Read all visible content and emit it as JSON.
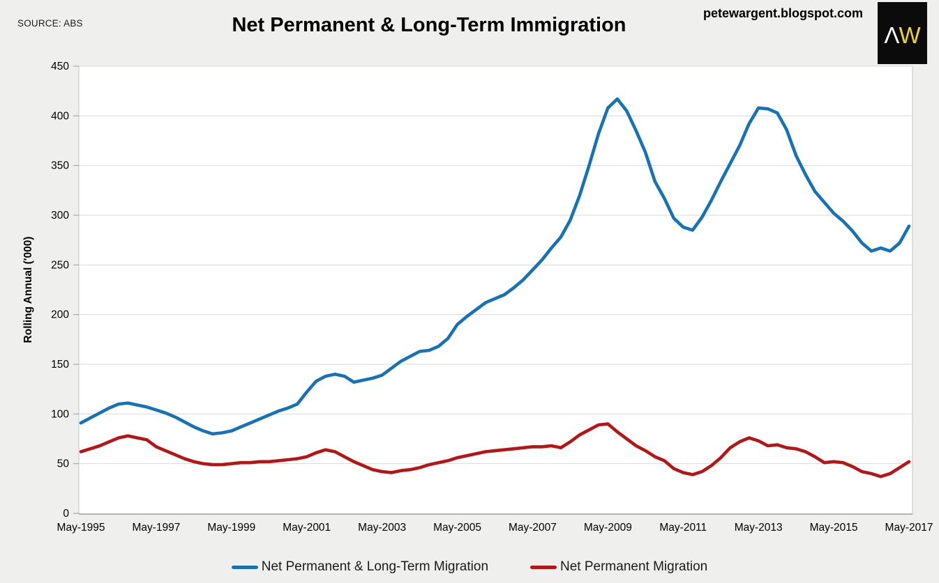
{
  "header": {
    "source": "SOURCE: ABS",
    "title": "Net Permanent & Long-Term Immigration",
    "site_url": "petewargent.blogspot.com",
    "logo": {
      "letter_a": "Λ",
      "letter_w": "W",
      "bg": "#0B0B0B",
      "a_color": "#FFFFFF",
      "w_color": "#EFD428"
    }
  },
  "chart_data": {
    "type": "line",
    "title": "Net Permanent & Long-Term Immigration",
    "xlabel": "",
    "ylabel": "Rolling Annual ('000)",
    "ylim": [
      0,
      450
    ],
    "ytick_step": 50,
    "grid": "horizontal",
    "legend_position": "bottom",
    "x_start_label": "May-1995",
    "x_end_label": "May-2017",
    "x_step_months": 3,
    "x_total_months": 264,
    "x_tick_month_positions": [
      0,
      24,
      48,
      72,
      96,
      120,
      144,
      168,
      192,
      216,
      240,
      264
    ],
    "x_tick_labels": [
      "May-1995",
      "May-1997",
      "May-1999",
      "May-2001",
      "May-2003",
      "May-2005",
      "May-2007",
      "May-2009",
      "May-2011",
      "May-2013",
      "May-2015",
      "May-2017"
    ],
    "series": [
      {
        "name": "Net Permanent & Long-Term Migration",
        "color": "#1572B6",
        "values": [
          91,
          96,
          101,
          106,
          110,
          111,
          109,
          107,
          104,
          101,
          97,
          92,
          87,
          83,
          80,
          81,
          83,
          87,
          91,
          95,
          99,
          103,
          106,
          110,
          122,
          133,
          138,
          140,
          138,
          132,
          134,
          136,
          139,
          146,
          153,
          158,
          163,
          164,
          168,
          176,
          190,
          198,
          205,
          212,
          216,
          220,
          227,
          235,
          245,
          255,
          267,
          278,
          295,
          320,
          350,
          382,
          408,
          417,
          405,
          385,
          363,
          334,
          317,
          297,
          288,
          285,
          298,
          315,
          334,
          352,
          370,
          392,
          408,
          407,
          403,
          386,
          360,
          341,
          324,
          313,
          302,
          294,
          284,
          272,
          264,
          267,
          264,
          272,
          289
        ]
      },
      {
        "name": "Net Permanent Migration",
        "color": "#B71416",
        "values": [
          62,
          65,
          68,
          72,
          76,
          78,
          76,
          74,
          67,
          63,
          59,
          55,
          52,
          50,
          49,
          49,
          50,
          51,
          51,
          52,
          52,
          53,
          54,
          55,
          57,
          61,
          64,
          62,
          57,
          52,
          48,
          44,
          42,
          41,
          43,
          44,
          46,
          49,
          51,
          53,
          56,
          58,
          60,
          62,
          63,
          64,
          65,
          66,
          67,
          67,
          68,
          66,
          72,
          79,
          84,
          89,
          90,
          82,
          75,
          68,
          63,
          57,
          53,
          45,
          41,
          39,
          42,
          48,
          56,
          66,
          72,
          76,
          73,
          68,
          69,
          66,
          65,
          62,
          57,
          51,
          52,
          51,
          47,
          42,
          40,
          37,
          40,
          46,
          52
        ]
      }
    ]
  },
  "legend_note": "series names above are also the legend labels"
}
